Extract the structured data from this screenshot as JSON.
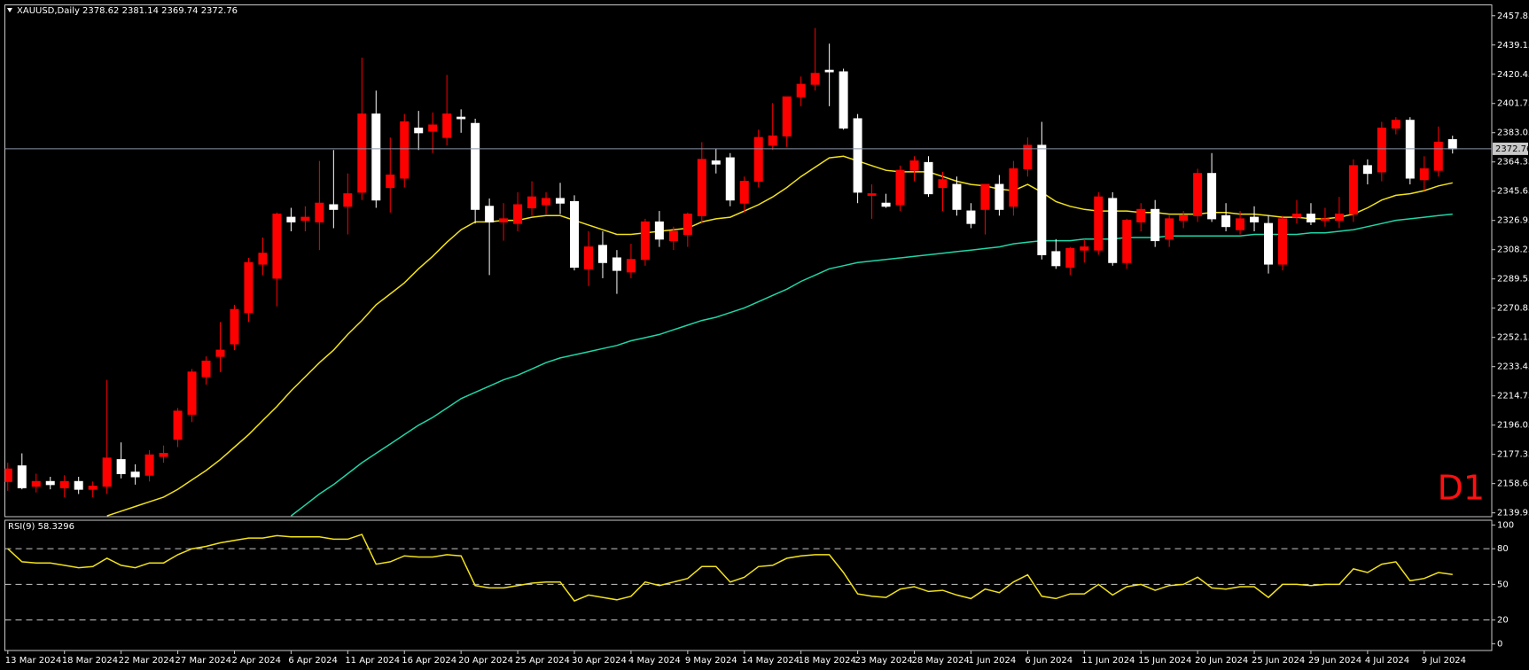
{
  "chart_data": [
    {
      "type": "candlestick",
      "title": "XAUUSD,Daily",
      "annotation": "D1",
      "up_color": "#ff0000",
      "down_color": "#ffffff",
      "categories": [
        "13 Mar 2024",
        null,
        null,
        null,
        "18 Mar 2024",
        null,
        null,
        null,
        "22 Mar 2024",
        null,
        null,
        null,
        "27 Mar 2024",
        null,
        null,
        null,
        "2 Apr 2024",
        null,
        null,
        null,
        "6 Apr 2024",
        null,
        null,
        null,
        "11 Apr 2024",
        null,
        null,
        null,
        "16 Apr 2024",
        null,
        null,
        null,
        "20 Apr 2024",
        null,
        null,
        null,
        "25 Apr 2024",
        null,
        null,
        null,
        "30 Apr 2024",
        null,
        null,
        null,
        "4 May 2024",
        null,
        null,
        null,
        "9 May 2024",
        null,
        null,
        null,
        "14 May 2024",
        null,
        null,
        null,
        "18 May 2024",
        null,
        null,
        null,
        "23 May 2024",
        null,
        null,
        null,
        "28 May 2024",
        null,
        null,
        null,
        "1 Jun 2024",
        null,
        null,
        null,
        "6 Jun 2024",
        null,
        null,
        null,
        "11 Jun 2024",
        null,
        null,
        null,
        "15 Jun 2024",
        null,
        null,
        null,
        "20 Jun 2024",
        null,
        null,
        null,
        "25 Jun 2024",
        null,
        null,
        null,
        "29 Jun 2024",
        null,
        null,
        null,
        "4 Jul 2024",
        null,
        null,
        null,
        "9 Jul 2024",
        null,
        null
      ],
      "open": [
        2160,
        2170,
        2157,
        2160,
        2156,
        2160,
        2155,
        2157,
        2174,
        2166,
        2164,
        2176,
        2187,
        2203,
        2227,
        2240,
        2248,
        2268,
        2299,
        2290,
        2329,
        2327,
        2326,
        2337,
        2336,
        2345,
        2395,
        2348,
        2354,
        2386,
        2384,
        2380,
        2393,
        2389,
        2336,
        2326,
        2325,
        2335,
        2337,
        2341,
        2339,
        2296,
        2311,
        2303,
        2294,
        2302,
        2326,
        2314,
        2318,
        2330,
        2365,
        2367,
        2338,
        2352,
        2375,
        2381,
        2406,
        2414,
        2423,
        2422,
        2392,
        2343,
        2338,
        2337,
        2359,
        2364,
        2348,
        2350,
        2333,
        2334,
        2350,
        2336,
        2360,
        2375,
        2307,
        2297,
        2308,
        2308,
        2341,
        2300,
        2326,
        2334,
        2315,
        2327,
        2330,
        2357,
        2330,
        2321,
        2329,
        2325,
        2299,
        2329,
        2331,
        2327,
        2327,
        2331,
        2362,
        2358,
        2386,
        2391,
        2353,
        2359,
        2378.62
      ],
      "high": [
        2172,
        2178,
        2165,
        2163,
        2164,
        2163,
        2160,
        2225,
        2185,
        2171,
        2180,
        2183,
        2207,
        2232,
        2240,
        2262,
        2273,
        2303,
        2316,
        2332,
        2335,
        2336,
        2365,
        2372,
        2357,
        2431,
        2410,
        2380,
        2395,
        2397,
        2396,
        2420,
        2398,
        2392,
        2341,
        2338,
        2345,
        2352,
        2345,
        2351,
        2343,
        2320,
        2320,
        2308,
        2312,
        2328,
        2333,
        2323,
        2332,
        2377,
        2373,
        2370,
        2355,
        2385,
        2402,
        2405,
        2419,
        2450,
        2440,
        2424,
        2395,
        2350,
        2344,
        2362,
        2368,
        2368,
        2358,
        2355,
        2338,
        2350,
        2356,
        2365,
        2380,
        2390,
        2315,
        2310,
        2315,
        2345,
        2345,
        2328,
        2338,
        2340,
        2330,
        2333,
        2360,
        2370,
        2338,
        2333,
        2336,
        2330,
        2330,
        2340,
        2338,
        2335,
        2342,
        2366,
        2366,
        2390,
        2393,
        2393,
        2368,
        2387,
        2381.14
      ],
      "low": [
        2154,
        2155,
        2153,
        2155,
        2150,
        2152,
        2150,
        2152,
        2162,
        2158,
        2160,
        2172,
        2182,
        2198,
        2222,
        2230,
        2244,
        2262,
        2292,
        2272,
        2320,
        2320,
        2308,
        2322,
        2318,
        2340,
        2335,
        2332,
        2348,
        2372,
        2370,
        2375,
        2383,
        2325,
        2292,
        2314,
        2320,
        2330,
        2331,
        2331,
        2295,
        2285,
        2290,
        2280,
        2290,
        2298,
        2310,
        2308,
        2310,
        2325,
        2357,
        2336,
        2332,
        2348,
        2372,
        2374,
        2400,
        2410,
        2400,
        2385,
        2338,
        2328,
        2335,
        2333,
        2352,
        2342,
        2333,
        2330,
        2322,
        2318,
        2330,
        2330,
        2355,
        2302,
        2296,
        2292,
        2300,
        2305,
        2298,
        2296,
        2320,
        2310,
        2310,
        2322,
        2326,
        2326,
        2320,
        2318,
        2320,
        2293,
        2295,
        2325,
        2324,
        2323,
        2322,
        2326,
        2350,
        2352,
        2382,
        2350,
        2346,
        2355,
        2369.74
      ],
      "close": [
        2168,
        2156,
        2160,
        2158,
        2160,
        2155,
        2157,
        2175,
        2165,
        2163,
        2177,
        2178,
        2205,
        2230,
        2237,
        2244,
        2270,
        2300,
        2306,
        2331,
        2326,
        2329,
        2338,
        2334,
        2344,
        2395,
        2340,
        2356,
        2390,
        2383,
        2388,
        2395,
        2392,
        2334,
        2326,
        2328,
        2337,
        2342,
        2341,
        2338,
        2297,
        2310,
        2300,
        2295,
        2302,
        2326,
        2315,
        2320,
        2331,
        2366,
        2363,
        2340,
        2352,
        2380,
        2381,
        2406,
        2414,
        2421,
        2422,
        2386,
        2345,
        2344,
        2336,
        2359,
        2365,
        2344,
        2353,
        2334,
        2325,
        2350,
        2334,
        2360,
        2375,
        2305,
        2298,
        2309,
        2310,
        2342,
        2300,
        2327,
        2334,
        2314,
        2328,
        2330,
        2357,
        2328,
        2323,
        2328,
        2326,
        2299,
        2328,
        2331,
        2326,
        2328,
        2331,
        2362,
        2357,
        2386,
        2391,
        2354,
        2360,
        2377,
        2372.76
      ],
      "series": [
        {
          "color": "#f2e21a",
          "values": [
            null,
            null,
            null,
            null,
            null,
            null,
            null,
            2138,
            2141,
            2144,
            2147,
            2150,
            2155,
            2161,
            2167,
            2174,
            2182,
            2190,
            2199,
            2208,
            2218,
            2227,
            2236,
            2244,
            2254,
            2263,
            2273,
            2280,
            2287,
            2296,
            2304,
            2313,
            2321,
            2326,
            2326,
            2327,
            2327,
            2329,
            2330,
            2330,
            2327,
            2324,
            2321,
            2318,
            2318,
            2319,
            2320,
            2321,
            2322,
            2326,
            2328,
            2329,
            2333,
            2337,
            2342,
            2348,
            2355,
            2361,
            2367,
            2368,
            2365,
            2362,
            2359,
            2358,
            2358,
            2358,
            2355,
            2352,
            2350,
            2349,
            2347,
            2346,
            2350,
            2345,
            2339,
            2336,
            2334,
            2333,
            2333,
            2333,
            2332,
            2332,
            2331,
            2331,
            2331,
            2332,
            2332,
            2331,
            2331,
            2330,
            2329,
            2329,
            2328,
            2328,
            2329,
            2331,
            2335,
            2340,
            2343,
            2344,
            2346,
            2349,
            2351
          ]
        },
        {
          "color": "#1fd6a6",
          "values": [
            null,
            null,
            null,
            null,
            null,
            null,
            null,
            null,
            null,
            null,
            null,
            null,
            null,
            null,
            null,
            null,
            null,
            null,
            null,
            null,
            2138,
            2145,
            2152,
            2158,
            2165,
            2172,
            2178,
            2184,
            2190,
            2196,
            2201,
            2207,
            2213,
            2217,
            2221,
            2225,
            2228,
            2232,
            2236,
            2239,
            2241,
            2243,
            2245,
            2247,
            2250,
            2252,
            2254,
            2257,
            2260,
            2263,
            2265,
            2268,
            2271,
            2275,
            2279,
            2283,
            2288,
            2292,
            2296,
            2298,
            2300,
            2301,
            2302,
            2303,
            2304,
            2305,
            2306,
            2307,
            2308,
            2309,
            2310,
            2312,
            2313,
            2314,
            2314,
            2314,
            2315,
            2315,
            2315,
            2316,
            2316,
            2316,
            2317,
            2317,
            2317,
            2317,
            2317,
            2317,
            2318,
            2318,
            2318,
            2318,
            2319,
            2319,
            2320,
            2321,
            2323,
            2325,
            2327,
            2328,
            2329,
            2330,
            2331
          ]
        }
      ],
      "ylim": [
        2137.5,
        2464.8
      ],
      "yticks": [
        2139.95,
        2158.65,
        2177.35,
        2196.05,
        2214.75,
        2233.45,
        2252.15,
        2270.85,
        2289.55,
        2308.25,
        2326.95,
        2345.65,
        2364.35,
        2383.05,
        2401.75,
        2420.45,
        2439.15,
        2457.85
      ]
    },
    {
      "type": "line",
      "title": "RSI(9)",
      "color": "#f2e21a",
      "values": [
        80,
        69,
        68,
        68,
        66,
        64,
        65,
        72,
        66,
        64,
        68,
        68,
        75,
        80,
        82,
        85,
        87,
        89,
        89,
        91,
        90,
        90,
        90,
        88,
        88,
        92,
        67,
        69,
        74,
        73,
        73,
        75,
        74,
        49,
        47,
        47,
        49,
        51,
        52,
        52,
        36,
        41,
        39,
        37,
        40,
        52,
        49,
        52,
        55,
        65,
        65,
        52,
        56,
        65,
        66,
        72,
        74,
        75,
        75,
        60,
        42,
        40,
        39,
        46,
        48,
        44,
        45,
        41,
        38,
        46,
        43,
        52,
        58,
        40,
        38,
        42,
        42,
        50,
        41,
        48,
        50,
        45,
        49,
        50,
        56,
        47,
        46,
        48,
        48,
        39,
        50,
        50,
        49,
        50,
        50,
        63,
        60,
        67,
        69,
        53,
        55,
        60,
        58.3296
      ],
      "ylim": [
        -5.7,
        104
      ],
      "yticks": [
        0,
        20,
        50,
        80,
        100
      ]
    }
  ]
}
